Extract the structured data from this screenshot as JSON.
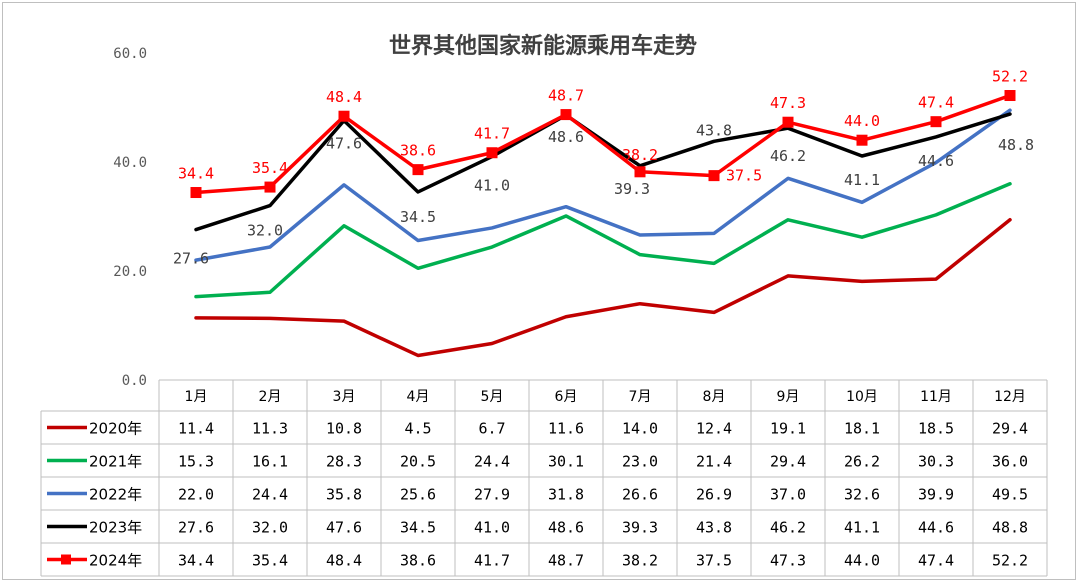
{
  "chart_data": {
    "type": "line",
    "title": "世界其他国家新能源乘用车走势",
    "categories": [
      "1月",
      "2月",
      "3月",
      "4月",
      "5月",
      "6月",
      "7月",
      "8月",
      "9月",
      "10月",
      "11月",
      "12月"
    ],
    "yticks": [
      "0.0",
      "20.0",
      "40.0",
      "60.0"
    ],
    "ylim": [
      0,
      60
    ],
    "grid": false,
    "legend": "data-table-rows",
    "series": [
      {
        "name": "2020年",
        "color": "#c00000",
        "marker": "none",
        "values": [
          11.4,
          11.3,
          10.8,
          4.5,
          6.7,
          11.6,
          14.0,
          12.4,
          19.1,
          18.1,
          18.5,
          29.4
        ],
        "cells": [
          "11.4",
          "11.3",
          "10.8",
          "4.5",
          "6.7",
          "11.6",
          "14.0",
          "12.4",
          "19.1",
          "18.1",
          "18.5",
          "29.4"
        ]
      },
      {
        "name": "2021年",
        "color": "#00b050",
        "marker": "none",
        "values": [
          15.3,
          16.1,
          28.3,
          20.5,
          24.4,
          30.1,
          23.0,
          21.4,
          29.4,
          26.2,
          30.3,
          36.0
        ],
        "cells": [
          "15.3",
          "16.1",
          "28.3",
          "20.5",
          "24.4",
          "30.1",
          "23.0",
          "21.4",
          "29.4",
          "26.2",
          "30.3",
          "36.0"
        ]
      },
      {
        "name": "2022年",
        "color": "#4472c4",
        "marker": "none",
        "values": [
          22.0,
          24.4,
          35.8,
          25.6,
          27.9,
          31.8,
          26.6,
          26.9,
          37.0,
          32.6,
          39.9,
          49.5
        ],
        "cells": [
          "22.0",
          "24.4",
          "35.8",
          "25.6",
          "27.9",
          "31.8",
          "26.6",
          "26.9",
          "37.0",
          "32.6",
          "39.9",
          "49.5"
        ]
      },
      {
        "name": "2023年",
        "color": "#000000",
        "marker": "none",
        "values": [
          27.6,
          32.0,
          47.6,
          34.5,
          41.0,
          48.6,
          39.3,
          43.8,
          46.2,
          41.1,
          44.6,
          48.8
        ],
        "cells": [
          "27.6",
          "32.0",
          "47.6",
          "34.5",
          "41.0",
          "48.6",
          "39.3",
          "43.8",
          "46.2",
          "41.1",
          "44.6",
          "48.8"
        ],
        "labels": [
          "27.6",
          "32.0",
          "47.6",
          "34.5",
          "41.0",
          "48.6",
          "39.3",
          "43.8",
          "46.2",
          "41.1",
          "44.6",
          "48.8"
        ]
      },
      {
        "name": "2024年",
        "color": "#ff0000",
        "marker": "square",
        "values": [
          34.4,
          35.4,
          48.4,
          38.6,
          41.7,
          48.7,
          38.2,
          37.5,
          47.3,
          44.0,
          47.4,
          52.2
        ],
        "cells": [
          "34.4",
          "35.4",
          "48.4",
          "38.6",
          "41.7",
          "48.7",
          "38.2",
          "37.5",
          "47.3",
          "44.0",
          "47.4",
          "52.2"
        ],
        "labels": [
          "34.4",
          "35.4",
          "48.4",
          "38.6",
          "41.7",
          "48.7",
          "38.2",
          "37.5",
          "47.3",
          "44.0",
          "47.4",
          "52.2"
        ]
      }
    ]
  }
}
